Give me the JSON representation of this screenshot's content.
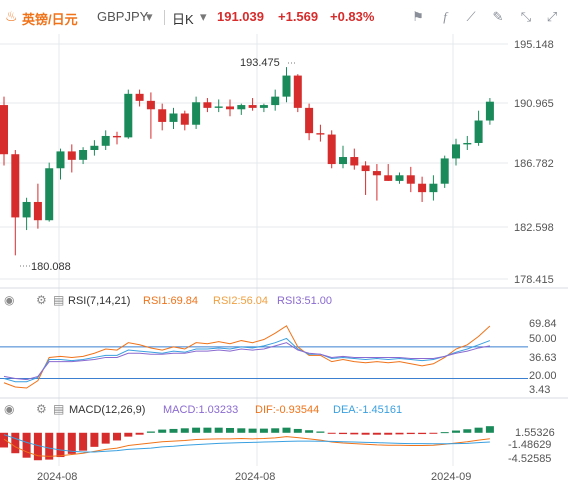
{
  "header": {
    "symbol_cn": "英镑/日元",
    "symbol": "GBPJPY",
    "dropdown_arrow": "▾",
    "period": "日K",
    "period_arrow": "▾",
    "price": "191.039",
    "change": "+1.569",
    "change_pct": "+0.83%",
    "icons": [
      "flag-icon",
      "formula-icon",
      "draw-icon",
      "brush-icon",
      "shrink-icon",
      "expand-icon"
    ]
  },
  "colors": {
    "up": "#1a8a5a",
    "down": "#d62c2c",
    "accent": "#f0731a",
    "grid": "#e6e8ec",
    "axis_text": "#555555"
  },
  "main_chart": {
    "price_axis_labels": [
      "195.148",
      "190.965",
      "186.782",
      "182.598",
      "178.415"
    ],
    "high_label": "193.475",
    "low_label": "180.088"
  },
  "rsi_panel": {
    "name": "RSI(7,14,21)",
    "rsi1": "RSI1:69.84",
    "rsi2": "RSI2:56.04",
    "rsi3": "RSI3:51.00",
    "axis_labels": [
      "69.84",
      "50.00",
      "36.63",
      "20.00",
      "3.43"
    ]
  },
  "macd_panel": {
    "name": "MACD(12,26,9)",
    "macd": "MACD:1.03233",
    "dif": "DIF:-0.93544",
    "dea": "DEA:-1.45161",
    "axis_labels": [
      "1.55326",
      "-1.48629",
      "-4.52585"
    ]
  },
  "x_axis": {
    "labels": [
      "2024-08",
      "2024-08",
      "2024-09"
    ]
  },
  "chart_data": [
    {
      "type": "candlestick",
      "title": "英镑/日元 GBPJPY 日K",
      "ylim": [
        178.415,
        195.148
      ],
      "y_ticks": [
        195.148,
        190.965,
        186.782,
        182.598,
        178.415
      ],
      "candles": [
        {
          "o": 190.8,
          "h": 191.4,
          "l": 186.5,
          "c": 187.3
        },
        {
          "o": 187.3,
          "h": 187.6,
          "l": 180.1,
          "c": 182.8
        },
        {
          "o": 182.8,
          "h": 184.2,
          "l": 181.9,
          "c": 183.9
        },
        {
          "o": 183.9,
          "h": 185.2,
          "l": 182.0,
          "c": 182.6
        },
        {
          "o": 182.6,
          "h": 186.7,
          "l": 182.5,
          "c": 186.3
        },
        {
          "o": 186.3,
          "h": 187.7,
          "l": 185.5,
          "c": 187.5
        },
        {
          "o": 187.5,
          "h": 188.0,
          "l": 186.0,
          "c": 186.9
        },
        {
          "o": 186.9,
          "h": 187.8,
          "l": 186.6,
          "c": 187.6
        },
        {
          "o": 187.6,
          "h": 188.3,
          "l": 187.2,
          "c": 187.9
        },
        {
          "o": 187.9,
          "h": 189.0,
          "l": 187.6,
          "c": 188.6
        },
        {
          "o": 188.6,
          "h": 188.9,
          "l": 188.0,
          "c": 188.5
        },
        {
          "o": 188.5,
          "h": 191.9,
          "l": 188.4,
          "c": 191.6
        },
        {
          "o": 191.6,
          "h": 191.9,
          "l": 190.7,
          "c": 191.1
        },
        {
          "o": 191.1,
          "h": 191.7,
          "l": 188.4,
          "c": 190.5
        },
        {
          "o": 190.5,
          "h": 190.9,
          "l": 189.0,
          "c": 189.6
        },
        {
          "o": 189.6,
          "h": 190.6,
          "l": 189.1,
          "c": 190.2
        },
        {
          "o": 190.2,
          "h": 190.4,
          "l": 189.0,
          "c": 189.4
        },
        {
          "o": 189.4,
          "h": 191.4,
          "l": 189.1,
          "c": 191.0
        },
        {
          "o": 191.0,
          "h": 191.3,
          "l": 190.3,
          "c": 190.6
        },
        {
          "o": 190.6,
          "h": 191.2,
          "l": 190.3,
          "c": 190.7
        },
        {
          "o": 190.7,
          "h": 191.2,
          "l": 190.0,
          "c": 190.5
        },
        {
          "o": 190.5,
          "h": 190.9,
          "l": 190.1,
          "c": 190.8
        },
        {
          "o": 190.8,
          "h": 191.3,
          "l": 190.4,
          "c": 190.6
        },
        {
          "o": 190.6,
          "h": 190.9,
          "l": 190.3,
          "c": 190.8
        },
        {
          "o": 190.8,
          "h": 191.9,
          "l": 190.4,
          "c": 191.4
        },
        {
          "o": 191.4,
          "h": 193.5,
          "l": 191.0,
          "c": 192.9
        },
        {
          "o": 192.9,
          "h": 193.0,
          "l": 190.3,
          "c": 190.6
        },
        {
          "o": 190.6,
          "h": 190.9,
          "l": 188.3,
          "c": 188.8
        },
        {
          "o": 188.8,
          "h": 189.4,
          "l": 188.2,
          "c": 188.7
        },
        {
          "o": 188.7,
          "h": 189.0,
          "l": 186.3,
          "c": 186.6
        },
        {
          "o": 186.6,
          "h": 187.9,
          "l": 186.3,
          "c": 187.1
        },
        {
          "o": 187.1,
          "h": 187.7,
          "l": 186.2,
          "c": 186.5
        },
        {
          "o": 186.5,
          "h": 186.8,
          "l": 184.4,
          "c": 186.1
        },
        {
          "o": 186.1,
          "h": 186.6,
          "l": 184.0,
          "c": 185.8
        },
        {
          "o": 185.8,
          "h": 186.6,
          "l": 185.4,
          "c": 185.4
        },
        {
          "o": 185.4,
          "h": 186.0,
          "l": 185.2,
          "c": 185.8
        },
        {
          "o": 185.8,
          "h": 186.4,
          "l": 184.6,
          "c": 185.2
        },
        {
          "o": 185.2,
          "h": 185.7,
          "l": 183.9,
          "c": 184.6
        },
        {
          "o": 184.6,
          "h": 185.8,
          "l": 184.0,
          "c": 185.2
        },
        {
          "o": 185.2,
          "h": 187.2,
          "l": 184.9,
          "c": 187.0
        },
        {
          "o": 187.0,
          "h": 188.4,
          "l": 186.5,
          "c": 188.0
        },
        {
          "o": 188.0,
          "h": 188.6,
          "l": 187.6,
          "c": 188.1
        },
        {
          "o": 188.1,
          "h": 190.4,
          "l": 187.9,
          "c": 189.7
        },
        {
          "o": 189.7,
          "h": 191.3,
          "l": 189.4,
          "c": 191.04
        }
      ],
      "annotations": [
        {
          "text": "193.475",
          "value": 193.475
        },
        {
          "text": "180.088",
          "value": 180.088
        }
      ]
    },
    {
      "type": "line",
      "title": "RSI(7,14,21)",
      "ylim": [
        3.43,
        85
      ],
      "y_ticks": [
        69.84,
        50.0,
        36.63,
        20.0,
        3.43
      ],
      "series": [
        {
          "name": "RSI1",
          "color": "#f0731a",
          "values": [
            16,
            12,
            11,
            18,
            40,
            41,
            40,
            41,
            44,
            48,
            47,
            54,
            52,
            49,
            47,
            50,
            48,
            54,
            53,
            55,
            53,
            56,
            54,
            57,
            63,
            70,
            50,
            42,
            42,
            36,
            38,
            36,
            35,
            36,
            35,
            36,
            34,
            32,
            34,
            40,
            48,
            52,
            60,
            69.84
          ]
        },
        {
          "name": "RSI2",
          "color": "#3aa0e0",
          "values": [
            20,
            17,
            17,
            21,
            38,
            38,
            37,
            38,
            40,
            42,
            42,
            47,
            46,
            45,
            44,
            46,
            45,
            48,
            48,
            49,
            48,
            50,
            49,
            51,
            54,
            58,
            48,
            43,
            43,
            39,
            40,
            39,
            38,
            39,
            38,
            39,
            38,
            37,
            38,
            41,
            45,
            48,
            52,
            56.04
          ]
        },
        {
          "name": "RSI3",
          "color": "#8a6ad0",
          "values": [
            22,
            20,
            19,
            22,
            36,
            36,
            36,
            37,
            38,
            40,
            40,
            44,
            44,
            43,
            43,
            44,
            44,
            46,
            46,
            47,
            46,
            48,
            47,
            48,
            51,
            54,
            47,
            44,
            43,
            40,
            41,
            40,
            40,
            40,
            40,
            40,
            39,
            39,
            39,
            41,
            44,
            46,
            49,
            51.0
          ]
        }
      ],
      "reference_lines": [
        50,
        20
      ]
    },
    {
      "type": "bar",
      "title": "MACD(12,26,9)",
      "ylim": [
        -5.2,
        2.0
      ],
      "y_ticks": [
        1.55326,
        -1.48629,
        -4.52585
      ],
      "histogram": [
        -2.3,
        -3.2,
        -3.9,
        -4.3,
        -4.2,
        -3.8,
        -3.3,
        -2.8,
        -2.2,
        -1.7,
        -1.2,
        -0.6,
        -0.3,
        0.2,
        0.5,
        0.6,
        0.7,
        0.8,
        0.8,
        0.8,
        0.75,
        0.7,
        0.65,
        0.65,
        0.7,
        0.8,
        0.6,
        0.4,
        0.2,
        -0.1,
        -0.2,
        -0.25,
        -0.3,
        -0.3,
        -0.3,
        -0.25,
        -0.2,
        -0.2,
        -0.15,
        0.1,
        0.35,
        0.55,
        0.8,
        1.03233
      ],
      "series": [
        {
          "name": "DIF",
          "color": "#f0731a",
          "values": [
            -1.0,
            -2.2,
            -3.0,
            -3.6,
            -3.7,
            -3.6,
            -3.4,
            -3.2,
            -2.9,
            -2.6,
            -2.4,
            -2.0,
            -1.8,
            -1.6,
            -1.4,
            -1.3,
            -1.2,
            -1.05,
            -1.0,
            -0.95,
            -0.95,
            -0.9,
            -0.95,
            -0.9,
            -0.8,
            -0.6,
            -0.75,
            -0.95,
            -1.15,
            -1.45,
            -1.6,
            -1.7,
            -1.8,
            -1.9,
            -1.95,
            -1.95,
            -2.0,
            -2.0,
            -1.95,
            -1.8,
            -1.6,
            -1.4,
            -1.15,
            -0.93544
          ]
        },
        {
          "name": "DEA",
          "color": "#3aa0e0",
          "values": [
            -0.3,
            -0.9,
            -1.5,
            -2.0,
            -2.4,
            -2.7,
            -2.9,
            -3.0,
            -3.0,
            -2.9,
            -2.8,
            -2.6,
            -2.5,
            -2.4,
            -2.2,
            -2.1,
            -1.95,
            -1.85,
            -1.75,
            -1.65,
            -1.6,
            -1.55,
            -1.5,
            -1.45,
            -1.4,
            -1.35,
            -1.3,
            -1.3,
            -1.32,
            -1.35,
            -1.4,
            -1.45,
            -1.5,
            -1.55,
            -1.6,
            -1.65,
            -1.7,
            -1.7,
            -1.72,
            -1.72,
            -1.7,
            -1.65,
            -1.55,
            -1.45161
          ]
        }
      ]
    }
  ]
}
